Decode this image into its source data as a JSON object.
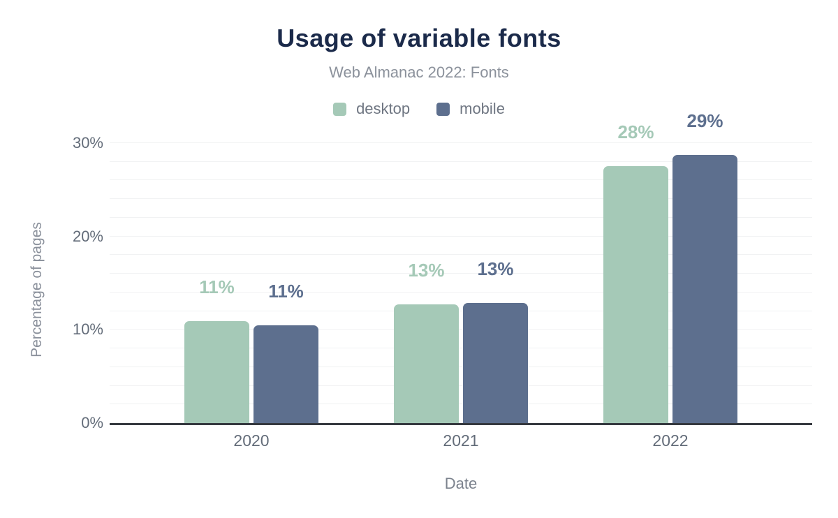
{
  "title": "Usage of variable fonts",
  "subtitle": "Web Almanac 2022: Fonts",
  "colors": {
    "title_text": "#1b2a4a",
    "subtitle_text": "#8b919b",
    "tick_text": "#636c79",
    "axis_title_text": "#8a909b",
    "gridline": "#f1f2f3",
    "axis_line": "#35393f",
    "desktop": "#a5c9b7",
    "mobile": "#5d6f8e",
    "background": "#ffffff"
  },
  "chart_data": {
    "type": "bar",
    "categories": [
      "2020",
      "2021",
      "2022"
    ],
    "series": [
      {
        "name": "desktop",
        "color": "#a5c9b7",
        "values": [
          10.9,
          12.7,
          27.5
        ],
        "labels": [
          "11%",
          "13%",
          "28%"
        ]
      },
      {
        "name": "mobile",
        "color": "#5d6f8e",
        "values": [
          10.5,
          12.9,
          28.7
        ],
        "labels": [
          "11%",
          "13%",
          "29%"
        ]
      }
    ],
    "title": "Usage of variable fonts",
    "subtitle": "Web Almanac 2022: Fonts",
    "xlabel": "Date",
    "ylabel": "Percentage of pages",
    "ylim": [
      0,
      30
    ],
    "yticks": [
      {
        "label": "0%",
        "value": 0
      },
      {
        "label": "10%",
        "value": 10
      },
      {
        "label": "20%",
        "value": 20
      },
      {
        "label": "30%",
        "value": 30
      }
    ],
    "grid_step": 2,
    "grid": "horizontal",
    "legend_position": "top"
  }
}
